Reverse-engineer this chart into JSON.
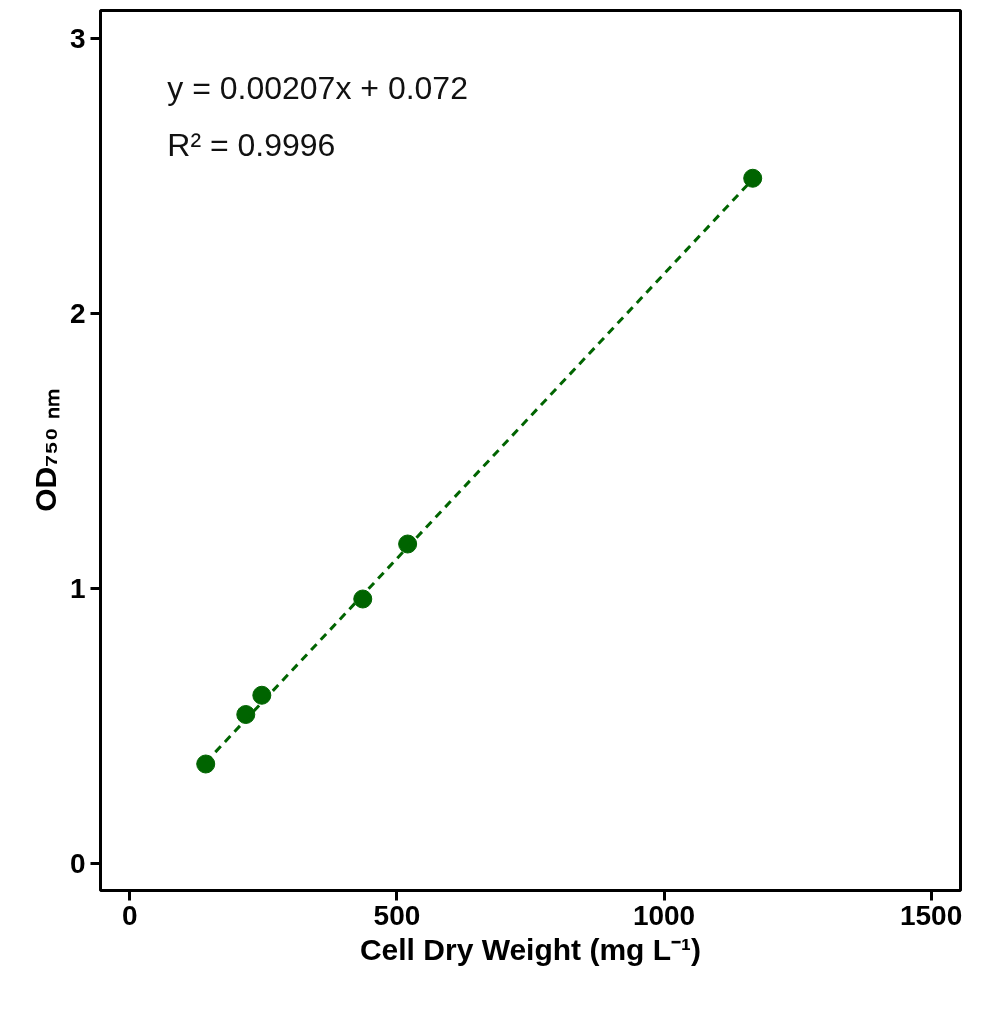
{
  "chart_data": {
    "type": "scatter",
    "xlabel": "Cell Dry Weight (mg L⁻¹)",
    "ylabel": "OD₇₅₀ ₙₘ",
    "annotations": [
      "y = 0.00207x + 0.072",
      "R² = 0.9996"
    ],
    "x": [
      142,
      217,
      247,
      436,
      520,
      1166
    ],
    "series": [
      {
        "color": "#006400",
        "marker": "circle",
        "values": [
          0.36,
          0.54,
          0.61,
          0.96,
          1.16,
          2.49
        ]
      },
      {
        "type": "line",
        "color": "#006400",
        "line_style": "dashed",
        "x": [
          142,
          1166
        ],
        "values": [
          0.366,
          2.486
        ]
      }
    ],
    "xlim": [
      -55,
      1555
    ],
    "ylim": [
      -0.1,
      3.1
    ],
    "xticks": [
      0,
      500,
      1000,
      1500
    ],
    "yticks": [
      0,
      1,
      2,
      3
    ],
    "grid": false
  }
}
